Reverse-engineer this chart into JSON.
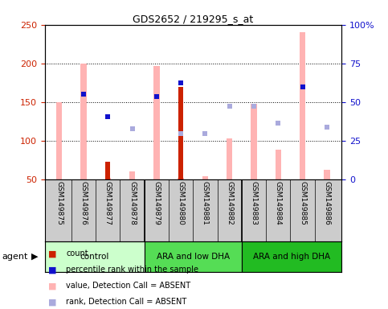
{
  "title": "GDS2652 / 219295_s_at",
  "samples": [
    "GSM149875",
    "GSM149876",
    "GSM149877",
    "GSM149878",
    "GSM149879",
    "GSM149880",
    "GSM149881",
    "GSM149882",
    "GSM149883",
    "GSM149884",
    "GSM149885",
    "GSM149886"
  ],
  "pink_bar_tops": [
    150,
    200,
    52,
    60,
    197,
    52,
    54,
    103,
    148,
    88,
    240,
    62
  ],
  "red_bar_tops": [
    0,
    0,
    73,
    0,
    0,
    170,
    0,
    0,
    0,
    0,
    0,
    0
  ],
  "blue_sq_y": [
    null,
    160,
    131,
    null,
    157,
    175,
    null,
    null,
    null,
    null,
    169,
    null
  ],
  "lavender_sq_y": [
    null,
    null,
    null,
    115,
    null,
    109,
    109,
    144,
    145,
    123,
    null,
    117
  ],
  "ylim_left": [
    50,
    250
  ],
  "ylim_right": [
    0,
    100
  ],
  "left_ticks": [
    50,
    100,
    150,
    200,
    250
  ],
  "right_ticks": [
    0,
    25,
    50,
    75,
    100
  ],
  "right_tick_labels": [
    "0",
    "25",
    "50",
    "75",
    "100%"
  ],
  "pink_color": "#ffb3b3",
  "red_color": "#cc2200",
  "blue_color": "#1111cc",
  "lavender_color": "#aaaadd",
  "left_tick_color": "#cc2200",
  "right_tick_color": "#1111cc",
  "bg_color": "#ffffff",
  "group_bg": "#d0d0d0",
  "group_colors": [
    "#ccffcc",
    "#55dd55",
    "#22bb22"
  ],
  "group_labels": [
    "control",
    "ARA and low DHA",
    "ARA and high DHA"
  ],
  "group_boundaries": [
    0,
    4,
    8,
    12
  ],
  "legend_items": [
    {
      "color": "#cc2200",
      "label": "count"
    },
    {
      "color": "#1111cc",
      "label": "percentile rank within the sample"
    },
    {
      "color": "#ffb3b3",
      "label": "value, Detection Call = ABSENT"
    },
    {
      "color": "#aaaadd",
      "label": "rank, Detection Call = ABSENT"
    }
  ]
}
